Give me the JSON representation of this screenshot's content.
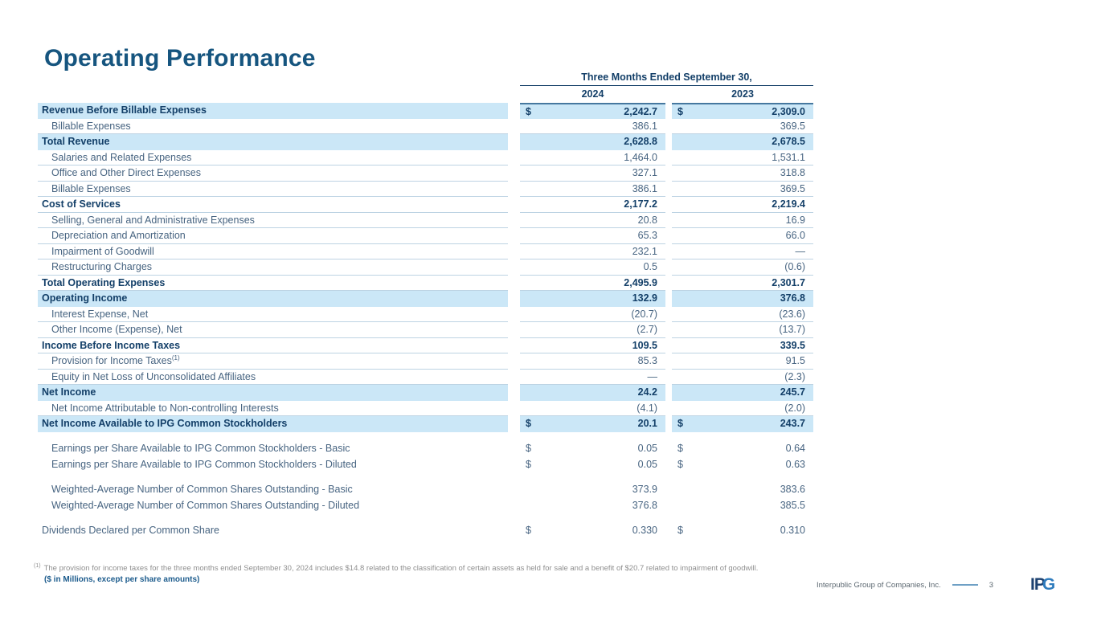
{
  "slide": {
    "title": "Operating Performance"
  },
  "colors": {
    "title_navy": "#16557F",
    "bold_navy": "#133F68",
    "body_blue_gray": "#476481",
    "row_highlight": "#CBE7F7",
    "separator": "#BDD3E3",
    "value_top_rule": "#46789F",
    "footnote_gray": "#8F8F8F",
    "units_blue": "#1D5C8D",
    "logo_dark_blue": "#1C4170",
    "logo_light_blue": "#2F7CBD"
  },
  "table": {
    "period_header": "Three Months Ended September 30,",
    "years": [
      "2024",
      "2023"
    ],
    "currency": "$",
    "rows": [
      {
        "label": "Revenue Before Billable Expenses",
        "v1": "2,242.7",
        "v2": "2,309.0",
        "bold": true,
        "hl": true,
        "dollar": true
      },
      {
        "label": "Billable Expenses",
        "v1": "386.1",
        "v2": "369.5",
        "indent": true
      },
      {
        "label": "Total Revenue",
        "v1": "2,628.8",
        "v2": "2,678.5",
        "bold": true,
        "hl": true
      },
      {
        "label": "Salaries and Related Expenses",
        "v1": "1,464.0",
        "v2": "1,531.1",
        "indent": true
      },
      {
        "label": "Office and Other Direct Expenses",
        "v1": "327.1",
        "v2": "318.8",
        "indent": true
      },
      {
        "label": "Billable Expenses",
        "v1": "386.1",
        "v2": "369.5",
        "indent": true
      },
      {
        "label": "Cost of Services",
        "v1": "2,177.2",
        "v2": "2,219.4",
        "bold": true
      },
      {
        "label": "Selling, General and Administrative Expenses",
        "v1": "20.8",
        "v2": "16.9",
        "indent": true
      },
      {
        "label": "Depreciation and Amortization",
        "v1": "65.3",
        "v2": "66.0",
        "indent": true
      },
      {
        "label": "Impairment of Goodwill",
        "v1": "232.1",
        "v2": "—",
        "indent": true
      },
      {
        "label": "Restructuring Charges",
        "v1": "0.5",
        "v2": "(0.6)",
        "indent": true
      },
      {
        "label": "Total Operating Expenses",
        "v1": "2,495.9",
        "v2": "2,301.7",
        "bold": true
      },
      {
        "label": "Operating Income",
        "v1": "132.9",
        "v2": "376.8",
        "bold": true,
        "hl": true
      },
      {
        "label": "Interest Expense, Net",
        "v1": "(20.7)",
        "v2": "(23.6)",
        "indent": true
      },
      {
        "label": "Other Income (Expense), Net",
        "v1": "(2.7)",
        "v2": "(13.7)",
        "indent": true
      },
      {
        "label": "Income Before Income Taxes",
        "v1": "109.5",
        "v2": "339.5",
        "bold": true
      },
      {
        "label": "Provision for Income Taxes",
        "sup": "(1)",
        "v1": "85.3",
        "v2": "91.5",
        "indent": true
      },
      {
        "label": "Equity in Net Loss of Unconsolidated Affiliates",
        "v1": "—",
        "v2": "(2.3)",
        "indent": true
      },
      {
        "label": "Net Income",
        "v1": "24.2",
        "v2": "245.7",
        "bold": true,
        "hl": true
      },
      {
        "label": "Net Income Attributable to Non-controlling Interests",
        "v1": "(4.1)",
        "v2": "(2.0)",
        "indent": true
      },
      {
        "label": "Net Income Available to IPG Common Stockholders",
        "v1": "20.1",
        "v2": "243.7",
        "bold": true,
        "hl": true,
        "dollar": true
      }
    ],
    "below_rows": [
      {
        "label": "Earnings per Share Available to IPG Common Stockholders - Basic",
        "v1": "0.05",
        "v2": "0.64",
        "indent": true,
        "dollar": true,
        "gap": 10
      },
      {
        "label": "Earnings per Share Available to IPG Common Stockholders - Diluted",
        "v1": "0.05",
        "v2": "0.63",
        "indent": true,
        "dollar": true
      },
      {
        "label": "Weighted-Average Number of Common Shares Outstanding - Basic",
        "v1": "373.9",
        "v2": "383.6",
        "indent": true,
        "gap": 11
      },
      {
        "label": "Weighted-Average Number of Common Shares Outstanding - Diluted",
        "v1": "376.8",
        "v2": "385.5",
        "indent": true
      },
      {
        "label": "Dividends Declared per Common Share",
        "v1": "0.330",
        "v2": "0.310",
        "dollar": true,
        "gap": 11
      }
    ]
  },
  "footnote": {
    "marker": "(1)",
    "text": "The provision for income taxes for the three months ended September 30, 2024 includes $14.8 related to the classification of certain assets as held for sale and a benefit of $20.7 related to impairment of goodwill."
  },
  "units_note": "($ in Millions, except per share amounts)",
  "footer": {
    "company": "Interpublic Group of Companies, Inc.",
    "page": "3",
    "logo_letters": [
      "I",
      "P",
      "G"
    ]
  }
}
